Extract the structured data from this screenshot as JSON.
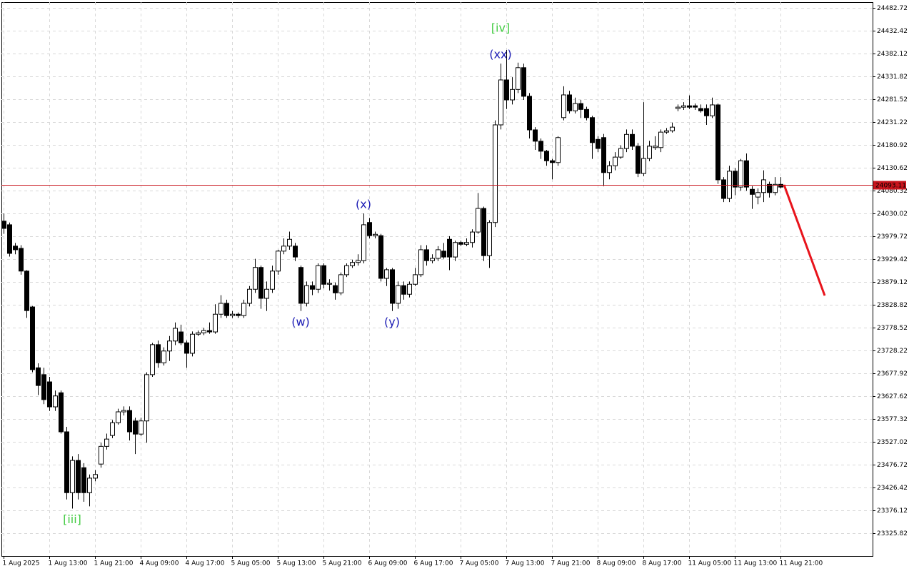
{
  "chart_data": {
    "type": "candlestick",
    "ylim": [
      23275.5,
      24495.3
    ],
    "yticks": [
      24482.72,
      24432.42,
      24382.12,
      24331.82,
      24281.52,
      24231.22,
      24180.92,
      24130.62,
      24080.32,
      24030.02,
      23979.72,
      23929.42,
      23879.12,
      23828.82,
      23778.52,
      23728.22,
      23677.92,
      23627.62,
      23577.32,
      23527.02,
      23476.72,
      23426.42,
      23376.12,
      23325.82
    ],
    "grid": true,
    "categories": [
      "1 Aug 2025",
      null,
      null,
      null,
      null,
      null,
      null,
      null,
      "1 Aug 13:00",
      null,
      null,
      null,
      null,
      null,
      null,
      null,
      "1 Aug 21:00",
      null,
      null,
      null,
      null,
      null,
      null,
      null,
      "4 Aug 09:00",
      null,
      null,
      null,
      null,
      null,
      null,
      null,
      "4 Aug 17:00",
      null,
      null,
      null,
      null,
      null,
      null,
      null,
      "5 Aug 05:00",
      null,
      null,
      null,
      null,
      null,
      null,
      null,
      "5 Aug 13:00",
      null,
      null,
      null,
      null,
      null,
      null,
      null,
      "5 Aug 21:00",
      null,
      null,
      null,
      null,
      null,
      null,
      null,
      "6 Aug 09:00",
      null,
      null,
      null,
      null,
      null,
      null,
      null,
      "6 Aug 17:00",
      null,
      null,
      null,
      null,
      null,
      null,
      null,
      "7 Aug 05:00",
      null,
      null,
      null,
      null,
      null,
      null,
      null,
      "7 Aug 13:00",
      null,
      null,
      null,
      null,
      null,
      null,
      null,
      "7 Aug 21:00",
      null,
      null,
      null,
      null,
      null,
      null,
      null,
      "8 Aug 09:00",
      null,
      null,
      null,
      null,
      null,
      null,
      null,
      "8 Aug 17:00",
      null,
      null,
      null,
      null,
      null,
      null,
      null,
      "11 Aug 05:00",
      null,
      null,
      null,
      null,
      null,
      null,
      null,
      "11 Aug 13:00",
      null,
      null,
      null,
      null,
      null,
      null,
      null,
      "11 Aug 21:00"
    ],
    "open": [
      24013,
      24005,
      23958,
      23953,
      23903,
      23824,
      23690,
      23675,
      23659,
      23604,
      23635,
      23549,
      23415,
      23486,
      23470,
      23415,
      23447,
      23478,
      23517,
      23541,
      23569,
      23593,
      23596,
      23573,
      23544,
      23573,
      23675,
      23741,
      23701,
      23727,
      23749,
      23769,
      23745,
      23722,
      23764,
      23767,
      23772,
      23769,
      23808,
      23832,
      23805,
      23808,
      23805,
      23832,
      23863,
      23911,
      23843,
      23863,
      23903,
      23947,
      23958,
      23958,
      23911,
      23832,
      23871,
      23863,
      23915,
      23874,
      23871,
      23855,
      23895,
      23915,
      23922,
      23926,
      24010,
      23981,
      23981,
      23887,
      23906,
      23832,
      23871,
      23852,
      23874,
      23895,
      23950,
      23926,
      23931,
      23947,
      23973,
      23934,
      23966,
      23962,
      23966,
      23989,
      24041,
      23937,
      24010,
      24225,
      24324,
      24280,
      24303,
      24351,
      24288,
      24214,
      24189,
      24167,
      24146,
      24142,
      24241,
      24291,
      24256,
      24272,
      24259,
      24241,
      24193,
      24197,
      24120,
      24135,
      24154,
      24173,
      24204,
      24178,
      24118,
      24151,
      24175,
      24175,
      24209,
      24212,
      24261,
      24264,
      24267,
      24267,
      24261,
      24261,
      24245,
      24269,
      24104,
      24063,
      24123,
      24088,
      24146,
      24083,
      24066,
      24076,
      24094,
      24076,
      24094
    ],
    "high": [
      24030,
      24010,
      23965,
      23960,
      23905,
      23826,
      23700,
      23690,
      23670,
      23640,
      23640,
      23560,
      23495,
      23500,
      23480,
      23455,
      23465,
      23525,
      23545,
      23575,
      23600,
      23605,
      23605,
      23580,
      23580,
      23680,
      23745,
      23750,
      23735,
      23760,
      23790,
      23785,
      23750,
      23770,
      23772,
      23778,
      23790,
      23830,
      23850,
      23840,
      23815,
      23812,
      23840,
      23870,
      23930,
      23915,
      23880,
      23915,
      23950,
      23975,
      23990,
      23965,
      23915,
      23880,
      23880,
      23920,
      23920,
      23885,
      23878,
      23900,
      23920,
      23928,
      23940,
      24030,
      24020,
      23990,
      23985,
      23910,
      23910,
      23880,
      23880,
      23880,
      23910,
      23960,
      23960,
      23940,
      23958,
      23965,
      23980,
      23970,
      23970,
      23975,
      23995,
      24075,
      24045,
      24015,
      24235,
      24360,
      24390,
      24330,
      24362,
      24360,
      24295,
      24220,
      24195,
      24170,
      24150,
      24200,
      24310,
      24300,
      24285,
      24280,
      24265,
      24245,
      24200,
      24205,
      24145,
      24165,
      24180,
      24215,
      24215,
      24185,
      24275,
      24190,
      24200,
      24215,
      24218,
      24230,
      24270,
      24275,
      24290,
      24272,
      24270,
      24270,
      24285,
      24272,
      24110,
      24135,
      24130,
      24150,
      24162,
      24090,
      24085,
      24125,
      24100,
      24110,
      24110
    ],
    "low": [
      23985,
      23935,
      23940,
      23895,
      23800,
      23680,
      23630,
      23610,
      23595,
      23595,
      23545,
      23400,
      23380,
      23400,
      23395,
      23385,
      23440,
      23470,
      23510,
      23535,
      23565,
      23585,
      23530,
      23500,
      23540,
      23525,
      23670,
      23690,
      23695,
      23705,
      23740,
      23740,
      23690,
      23715,
      23760,
      23762,
      23765,
      23765,
      23800,
      23800,
      23800,
      23800,
      23800,
      23825,
      23855,
      23820,
      23815,
      23855,
      23895,
      23940,
      23950,
      23925,
      23815,
      23825,
      23850,
      23855,
      23865,
      23860,
      23840,
      23850,
      23890,
      23910,
      23915,
      23920,
      23975,
      23975,
      23880,
      23870,
      23815,
      23820,
      23840,
      23845,
      23870,
      23890,
      23915,
      23920,
      23925,
      23930,
      23905,
      23925,
      23958,
      23958,
      23955,
      23985,
      23925,
      23910,
      24000,
      24215,
      24260,
      24270,
      24295,
      24280,
      24195,
      24170,
      24150,
      24135,
      24105,
      24135,
      24235,
      24250,
      24250,
      24240,
      24235,
      24150,
      24165,
      24090,
      24105,
      24125,
      24150,
      24165,
      24170,
      24110,
      24112,
      24145,
      24170,
      24165,
      24205,
      24208,
      24255,
      24258,
      24260,
      24258,
      24252,
      24225,
      24240,
      24095,
      24055,
      24055,
      24070,
      24080,
      24080,
      24040,
      24050,
      24055,
      24065,
      24070,
      24085
    ],
    "close": [
      23997,
      23942,
      23950,
      23903,
      23816,
      23686,
      23651,
      23620,
      23604,
      23628,
      23549,
      23415,
      23486,
      23415,
      23415,
      23447,
      23455,
      23517,
      23533,
      23569,
      23593,
      23596,
      23549,
      23544,
      23573,
      23675,
      23741,
      23701,
      23727,
      23749,
      23777,
      23745,
      23722,
      23764,
      23767,
      23772,
      23769,
      23808,
      23832,
      23805,
      23808,
      23805,
      23832,
      23863,
      23911,
      23843,
      23863,
      23903,
      23947,
      23958,
      23973,
      23934,
      23832,
      23871,
      23863,
      23915,
      23874,
      23876,
      23855,
      23895,
      23915,
      23922,
      23926,
      24005,
      23981,
      23984,
      23887,
      23906,
      23832,
      23871,
      23852,
      23874,
      23895,
      23950,
      23926,
      23931,
      23950,
      23934,
      23934,
      23966,
      23962,
      23966,
      23989,
      24041,
      23937,
      24010,
      24225,
      24324,
      24280,
      24303,
      24351,
      24288,
      24214,
      24189,
      24167,
      24146,
      24142,
      24197,
      24291,
      24256,
      24272,
      24259,
      24241,
      24186,
      24173,
      24120,
      24135,
      24154,
      24173,
      24204,
      24178,
      24118,
      24151,
      24178,
      24178,
      24209,
      24212,
      24220,
      24264,
      24267,
      24264,
      24264,
      24256,
      24245,
      24269,
      24104,
      24063,
      24123,
      24088,
      24146,
      24088,
      24072,
      24076,
      24104,
      24076,
      24094,
      24088
    ],
    "price_line": {
      "value": 24093.11,
      "color": "#c8141c"
    },
    "forecast": {
      "start": 24093,
      "end": 23849,
      "color": "#e8141c"
    },
    "annotations": [
      {
        "text": "[iii]",
        "candle": 12,
        "position": "below",
        "color": "#44cc44"
      },
      {
        "text": "(w)",
        "candle": 52,
        "position": "below",
        "color": "#1a1ab4"
      },
      {
        "text": "(x)",
        "candle": 63,
        "position": "above",
        "color": "#1a1ab4"
      },
      {
        "text": "(y)",
        "candle": 68,
        "position": "below",
        "color": "#1a1ab4"
      },
      {
        "text": "(xx)",
        "candle": 87,
        "position": "above",
        "color": "#1a1ab4"
      },
      {
        "text": "[iv]",
        "candle": 87,
        "position": "above",
        "color": "#44cc44"
      }
    ]
  }
}
